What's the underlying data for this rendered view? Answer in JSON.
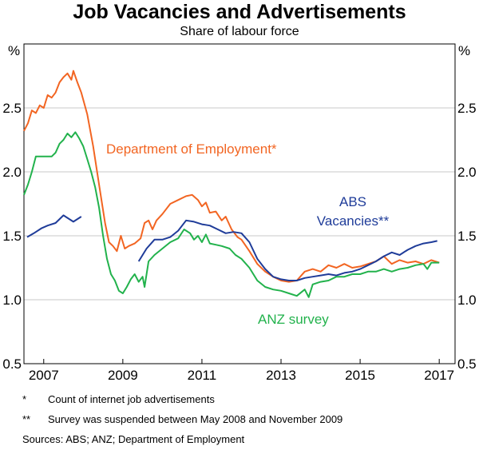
{
  "title": "Job Vacancies and Advertisements",
  "subtitle": "Share of labour force",
  "footnotes": [
    {
      "mark": "*",
      "text": "Count of internet job advertisements"
    },
    {
      "mark": "**",
      "text": "Survey was suspended between May 2008 and November 2009"
    }
  ],
  "sources": "Sources:   ABS; ANZ; Department of Employment",
  "chart_data": {
    "type": "line",
    "unit_left": "%",
    "unit_right": "%",
    "xlim": [
      2006.5,
      2017.4
    ],
    "ylim": [
      0.5,
      3.0
    ],
    "x_ticks": [
      2007,
      2009,
      2011,
      2013,
      2015,
      2017
    ],
    "x_tick_labels": [
      "2007",
      "2009",
      "2011",
      "2013",
      "2015",
      "2017"
    ],
    "y_ticks": [
      0.5,
      1.0,
      1.5,
      2.0,
      2.5
    ],
    "y_tick_labels": [
      "0.5",
      "1.0",
      "1.5",
      "2.0",
      "2.5"
    ],
    "grid": true,
    "series": [
      {
        "name": "Department of Employment*",
        "color": "#f26522",
        "points": [
          [
            2006.5,
            2.32
          ],
          [
            2006.6,
            2.38
          ],
          [
            2006.7,
            2.48
          ],
          [
            2006.8,
            2.46
          ],
          [
            2006.9,
            2.52
          ],
          [
            2007.0,
            2.5
          ],
          [
            2007.1,
            2.6
          ],
          [
            2007.2,
            2.58
          ],
          [
            2007.3,
            2.62
          ],
          [
            2007.4,
            2.7
          ],
          [
            2007.5,
            2.74
          ],
          [
            2007.6,
            2.77
          ],
          [
            2007.7,
            2.72
          ],
          [
            2007.75,
            2.79
          ],
          [
            2007.85,
            2.7
          ],
          [
            2007.95,
            2.62
          ],
          [
            2008.1,
            2.45
          ],
          [
            2008.25,
            2.2
          ],
          [
            2008.4,
            1.9
          ],
          [
            2008.55,
            1.6
          ],
          [
            2008.65,
            1.45
          ],
          [
            2008.75,
            1.42
          ],
          [
            2008.85,
            1.38
          ],
          [
            2008.95,
            1.5
          ],
          [
            2009.05,
            1.4
          ],
          [
            2009.15,
            1.42
          ],
          [
            2009.3,
            1.44
          ],
          [
            2009.45,
            1.48
          ],
          [
            2009.55,
            1.6
          ],
          [
            2009.65,
            1.62
          ],
          [
            2009.75,
            1.55
          ],
          [
            2009.85,
            1.62
          ],
          [
            2010.0,
            1.67
          ],
          [
            2010.2,
            1.75
          ],
          [
            2010.4,
            1.78
          ],
          [
            2010.6,
            1.81
          ],
          [
            2010.75,
            1.82
          ],
          [
            2010.9,
            1.78
          ],
          [
            2011.0,
            1.73
          ],
          [
            2011.1,
            1.76
          ],
          [
            2011.2,
            1.68
          ],
          [
            2011.35,
            1.69
          ],
          [
            2011.5,
            1.62
          ],
          [
            2011.6,
            1.65
          ],
          [
            2011.75,
            1.55
          ],
          [
            2011.9,
            1.49
          ],
          [
            2012.0,
            1.47
          ],
          [
            2012.2,
            1.38
          ],
          [
            2012.4,
            1.28
          ],
          [
            2012.6,
            1.22
          ],
          [
            2012.8,
            1.18
          ],
          [
            2013.0,
            1.15
          ],
          [
            2013.2,
            1.14
          ],
          [
            2013.4,
            1.15
          ],
          [
            2013.6,
            1.22
          ],
          [
            2013.8,
            1.24
          ],
          [
            2014.0,
            1.22
          ],
          [
            2014.2,
            1.27
          ],
          [
            2014.4,
            1.25
          ],
          [
            2014.6,
            1.28
          ],
          [
            2014.8,
            1.25
          ],
          [
            2015.0,
            1.26
          ],
          [
            2015.2,
            1.28
          ],
          [
            2015.4,
            1.3
          ],
          [
            2015.6,
            1.34
          ],
          [
            2015.8,
            1.28
          ],
          [
            2016.0,
            1.31
          ],
          [
            2016.2,
            1.29
          ],
          [
            2016.4,
            1.3
          ],
          [
            2016.6,
            1.28
          ],
          [
            2016.8,
            1.31
          ],
          [
            2017.0,
            1.29
          ]
        ]
      },
      {
        "name": "ABS Vacancies**",
        "color": "#1f3c99",
        "segments": [
          [
            [
              2006.58,
              1.49
            ],
            [
              2006.75,
              1.52
            ],
            [
              2006.95,
              1.56
            ],
            [
              2007.1,
              1.58
            ],
            [
              2007.3,
              1.6
            ],
            [
              2007.5,
              1.66
            ],
            [
              2007.6,
              1.64
            ],
            [
              2007.75,
              1.61
            ],
            [
              2007.95,
              1.65
            ]
          ],
          [
            [
              2009.4,
              1.3
            ],
            [
              2009.6,
              1.4
            ],
            [
              2009.8,
              1.47
            ],
            [
              2010.0,
              1.47
            ],
            [
              2010.2,
              1.49
            ],
            [
              2010.4,
              1.54
            ],
            [
              2010.6,
              1.62
            ],
            [
              2010.8,
              1.61
            ],
            [
              2011.0,
              1.59
            ],
            [
              2011.2,
              1.58
            ],
            [
              2011.4,
              1.55
            ],
            [
              2011.6,
              1.52
            ],
            [
              2011.8,
              1.53
            ],
            [
              2012.0,
              1.52
            ],
            [
              2012.2,
              1.45
            ],
            [
              2012.4,
              1.32
            ],
            [
              2012.6,
              1.24
            ],
            [
              2012.8,
              1.18
            ],
            [
              2013.0,
              1.16
            ],
            [
              2013.2,
              1.15
            ],
            [
              2013.4,
              1.15
            ],
            [
              2013.6,
              1.17
            ],
            [
              2013.8,
              1.18
            ],
            [
              2014.0,
              1.19
            ],
            [
              2014.2,
              1.2
            ],
            [
              2014.4,
              1.19
            ],
            [
              2014.6,
              1.21
            ],
            [
              2014.8,
              1.22
            ],
            [
              2015.0,
              1.24
            ],
            [
              2015.2,
              1.27
            ],
            [
              2015.4,
              1.3
            ],
            [
              2015.6,
              1.34
            ],
            [
              2015.8,
              1.37
            ],
            [
              2016.0,
              1.35
            ],
            [
              2016.2,
              1.39
            ],
            [
              2016.4,
              1.42
            ],
            [
              2016.6,
              1.44
            ],
            [
              2016.8,
              1.45
            ],
            [
              2016.95,
              1.46
            ]
          ]
        ]
      },
      {
        "name": "ANZ survey",
        "color": "#22b24c",
        "points": [
          [
            2006.5,
            1.82
          ],
          [
            2006.6,
            1.9
          ],
          [
            2006.7,
            2.0
          ],
          [
            2006.8,
            2.12
          ],
          [
            2006.9,
            2.12
          ],
          [
            2007.0,
            2.12
          ],
          [
            2007.1,
            2.12
          ],
          [
            2007.2,
            2.12
          ],
          [
            2007.3,
            2.15
          ],
          [
            2007.4,
            2.22
          ],
          [
            2007.5,
            2.25
          ],
          [
            2007.6,
            2.3
          ],
          [
            2007.7,
            2.27
          ],
          [
            2007.8,
            2.31
          ],
          [
            2007.9,
            2.26
          ],
          [
            2008.0,
            2.2
          ],
          [
            2008.1,
            2.1
          ],
          [
            2008.2,
            2.0
          ],
          [
            2008.3,
            1.88
          ],
          [
            2008.4,
            1.72
          ],
          [
            2008.5,
            1.5
          ],
          [
            2008.6,
            1.32
          ],
          [
            2008.7,
            1.2
          ],
          [
            2008.8,
            1.15
          ],
          [
            2008.9,
            1.07
          ],
          [
            2009.0,
            1.05
          ],
          [
            2009.1,
            1.1
          ],
          [
            2009.2,
            1.16
          ],
          [
            2009.3,
            1.2
          ],
          [
            2009.4,
            1.14
          ],
          [
            2009.5,
            1.18
          ],
          [
            2009.55,
            1.1
          ],
          [
            2009.65,
            1.3
          ],
          [
            2009.8,
            1.35
          ],
          [
            2010.0,
            1.4
          ],
          [
            2010.2,
            1.45
          ],
          [
            2010.4,
            1.48
          ],
          [
            2010.55,
            1.55
          ],
          [
            2010.7,
            1.52
          ],
          [
            2010.8,
            1.47
          ],
          [
            2010.9,
            1.5
          ],
          [
            2011.0,
            1.45
          ],
          [
            2011.1,
            1.51
          ],
          [
            2011.2,
            1.44
          ],
          [
            2011.35,
            1.43
          ],
          [
            2011.5,
            1.42
          ],
          [
            2011.7,
            1.4
          ],
          [
            2011.85,
            1.35
          ],
          [
            2012.0,
            1.32
          ],
          [
            2012.2,
            1.25
          ],
          [
            2012.4,
            1.15
          ],
          [
            2012.6,
            1.1
          ],
          [
            2012.8,
            1.08
          ],
          [
            2013.0,
            1.07
          ],
          [
            2013.2,
            1.05
          ],
          [
            2013.4,
            1.03
          ],
          [
            2013.6,
            1.08
          ],
          [
            2013.7,
            1.02
          ],
          [
            2013.8,
            1.12
          ],
          [
            2014.0,
            1.14
          ],
          [
            2014.2,
            1.15
          ],
          [
            2014.4,
            1.18
          ],
          [
            2014.6,
            1.18
          ],
          [
            2014.8,
            1.2
          ],
          [
            2015.0,
            1.2
          ],
          [
            2015.2,
            1.22
          ],
          [
            2015.4,
            1.22
          ],
          [
            2015.6,
            1.24
          ],
          [
            2015.8,
            1.22
          ],
          [
            2016.0,
            1.24
          ],
          [
            2016.2,
            1.25
          ],
          [
            2016.4,
            1.27
          ],
          [
            2016.6,
            1.28
          ],
          [
            2016.7,
            1.24
          ],
          [
            2016.8,
            1.29
          ],
          [
            2017.0,
            1.29
          ]
        ]
      }
    ],
    "annotations": [
      {
        "text": "Department of Employment*",
        "color": "#f26522"
      },
      {
        "text": "ABS",
        "color": "#1f3c99"
      },
      {
        "text": "Vacancies**",
        "color": "#1f3c99"
      },
      {
        "text": "ANZ survey",
        "color": "#22b24c"
      }
    ]
  }
}
